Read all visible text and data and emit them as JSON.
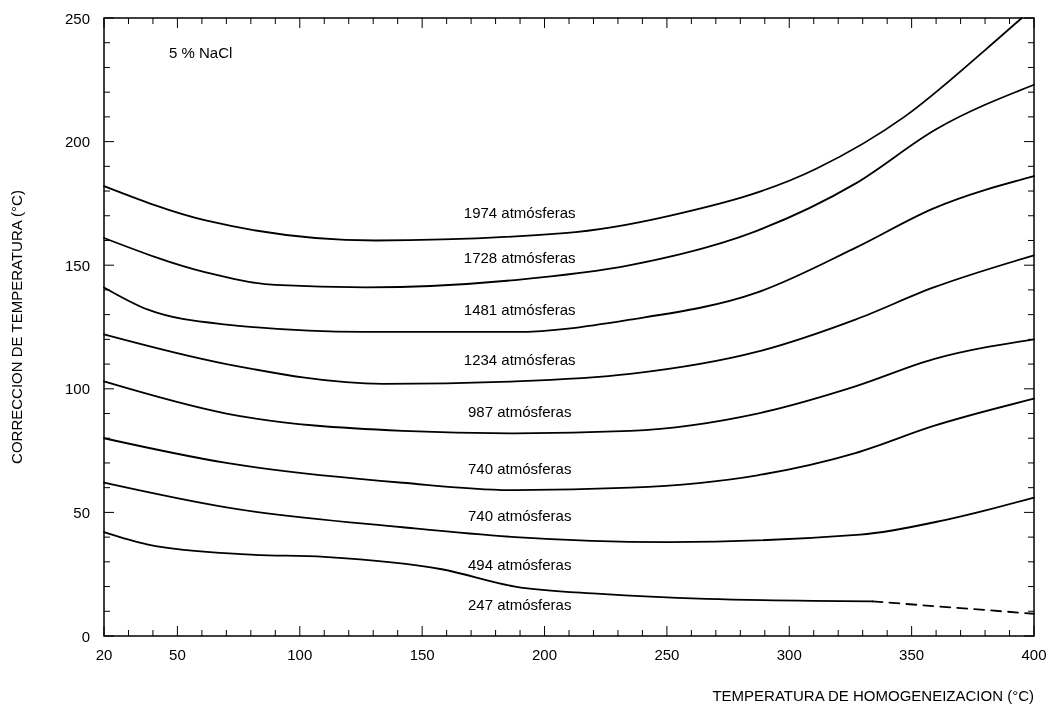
{
  "chart_data": {
    "type": "line",
    "xlabel": "TEMPERATURA DE HOMOGENEIZACION (°C)",
    "ylabel": "CORRECCION DE TEMPERATURA (°C)",
    "xlim": [
      20,
      400
    ],
    "ylim": [
      0,
      250
    ],
    "xticks": [
      20,
      {
        "value": 30,
        "label": null
      },
      {
        "value": 40,
        "label": null
      },
      50,
      {
        "value": 60,
        "label": null
      },
      {
        "value": 70,
        "label": null
      },
      {
        "value": 80,
        "label": null
      },
      {
        "value": 90,
        "label": null
      },
      100,
      {
        "value": 110,
        "label": null
      },
      {
        "value": 120,
        "label": null
      },
      {
        "value": 130,
        "label": null
      },
      {
        "value": 140,
        "label": null
      },
      150,
      {
        "value": 160,
        "label": null
      },
      {
        "value": 170,
        "label": null
      },
      {
        "value": 180,
        "label": null
      },
      {
        "value": 190,
        "label": null
      },
      200,
      {
        "value": 210,
        "label": null
      },
      {
        "value": 220,
        "label": null
      },
      {
        "value": 230,
        "label": null
      },
      {
        "value": 240,
        "label": null
      },
      250,
      {
        "value": 260,
        "label": null
      },
      {
        "value": 270,
        "label": null
      },
      {
        "value": 280,
        "label": null
      },
      {
        "value": 290,
        "label": null
      },
      300,
      {
        "value": 310,
        "label": null
      },
      {
        "value": 320,
        "label": null
      },
      {
        "value": 330,
        "label": null
      },
      {
        "value": 340,
        "label": null
      },
      350,
      {
        "value": 360,
        "label": null
      },
      {
        "value": 370,
        "label": null
      },
      {
        "value": 380,
        "label": null
      },
      {
        "value": 390,
        "label": null
      },
      400
    ],
    "yticks": [
      0,
      {
        "value": 10,
        "label": null
      },
      {
        "value": 20,
        "label": null
      },
      {
        "value": 30,
        "label": null
      },
      {
        "value": 40,
        "label": null
      },
      50,
      {
        "value": 60,
        "label": null
      },
      {
        "value": 70,
        "label": null
      },
      {
        "value": 80,
        "label": null
      },
      {
        "value": 90,
        "label": null
      },
      100,
      {
        "value": 110,
        "label": null
      },
      {
        "value": 120,
        "label": null
      },
      {
        "value": 130,
        "label": null
      },
      {
        "value": 140,
        "label": null
      },
      150,
      {
        "value": 160,
        "label": null
      },
      {
        "value": 170,
        "label": null
      },
      {
        "value": 180,
        "label": null
      },
      {
        "value": 190,
        "label": null
      },
      200,
      {
        "value": 210,
        "label": null
      },
      {
        "value": 220,
        "label": null
      },
      {
        "value": 230,
        "label": null
      },
      {
        "value": 240,
        "label": null
      },
      250
    ],
    "grid": false,
    "line_style": "solid",
    "series": [
      {
        "name": "1974 atmósferas",
        "color": "#000000",
        "x": [
          20,
          62,
          131,
          208,
          251,
          311,
          347,
          380,
          395
        ],
        "values": [
          182,
          168,
          160,
          163,
          170,
          189,
          210,
          237,
          250
        ]
      },
      {
        "name": "1728 atmósferas",
        "color": "#000000",
        "x": [
          20,
          62,
          90,
          127,
          188,
          235,
          287,
          327,
          360,
          400
        ],
        "values": [
          161,
          147,
          142,
          141,
          144,
          150,
          164,
          183,
          205,
          223
        ]
      },
      {
        "name": "1481 atmósferas",
        "color": "#000000",
        "x": [
          20,
          38,
          70,
          126,
          188,
          235,
          287,
          327,
          359,
          400
        ],
        "values": [
          141,
          132,
          126,
          123,
          123,
          128,
          139,
          157,
          173,
          186
        ]
      },
      {
        "name": "1234 atmósferas",
        "color": "#000000",
        "x": [
          20,
          70,
          134,
          188,
          235,
          287,
          327,
          359,
          400
        ],
        "values": [
          122,
          110,
          102,
          103,
          106,
          115,
          128,
          141,
          154
        ]
      },
      {
        "name": "987 atmósferas",
        "color": "#000000",
        "x": [
          20,
          70,
          142,
          188,
          235,
          287,
          327,
          359,
          400
        ],
        "values": [
          103,
          90,
          83,
          82,
          83,
          90,
          101,
          112,
          120
        ]
      },
      {
        "name": "740 atmósferas",
        "color": "#000000",
        "x": [
          20,
          70,
          142,
          188,
          235,
          287,
          327,
          359,
          400
        ],
        "values": [
          80,
          70,
          62,
          59,
          60,
          65,
          74,
          85,
          96
        ]
      },
      {
        "name": "740 atmósferas",
        "color": "#000000",
        "x": [
          20,
          70,
          142,
          188,
          250,
          329,
          364,
          400
        ],
        "values": [
          62,
          52,
          44,
          40,
          38,
          41,
          47,
          56
        ]
      },
      {
        "name": "494 atmósferas",
        "color": "#000000",
        "x": [
          20,
          38,
          78,
          110,
          158,
          188,
          223,
          266,
          334
        ],
        "values": [
          42,
          37,
          33,
          32,
          27,
          20,
          17,
          15,
          14
        ]
      },
      {
        "color": "#000000",
        "line_style": "dashed",
        "x": [
          334,
          400
        ],
        "values": [
          14,
          9
        ]
      }
    ],
    "annotations": [
      "5 % NaCl",
      "247 atmósferas"
    ]
  }
}
